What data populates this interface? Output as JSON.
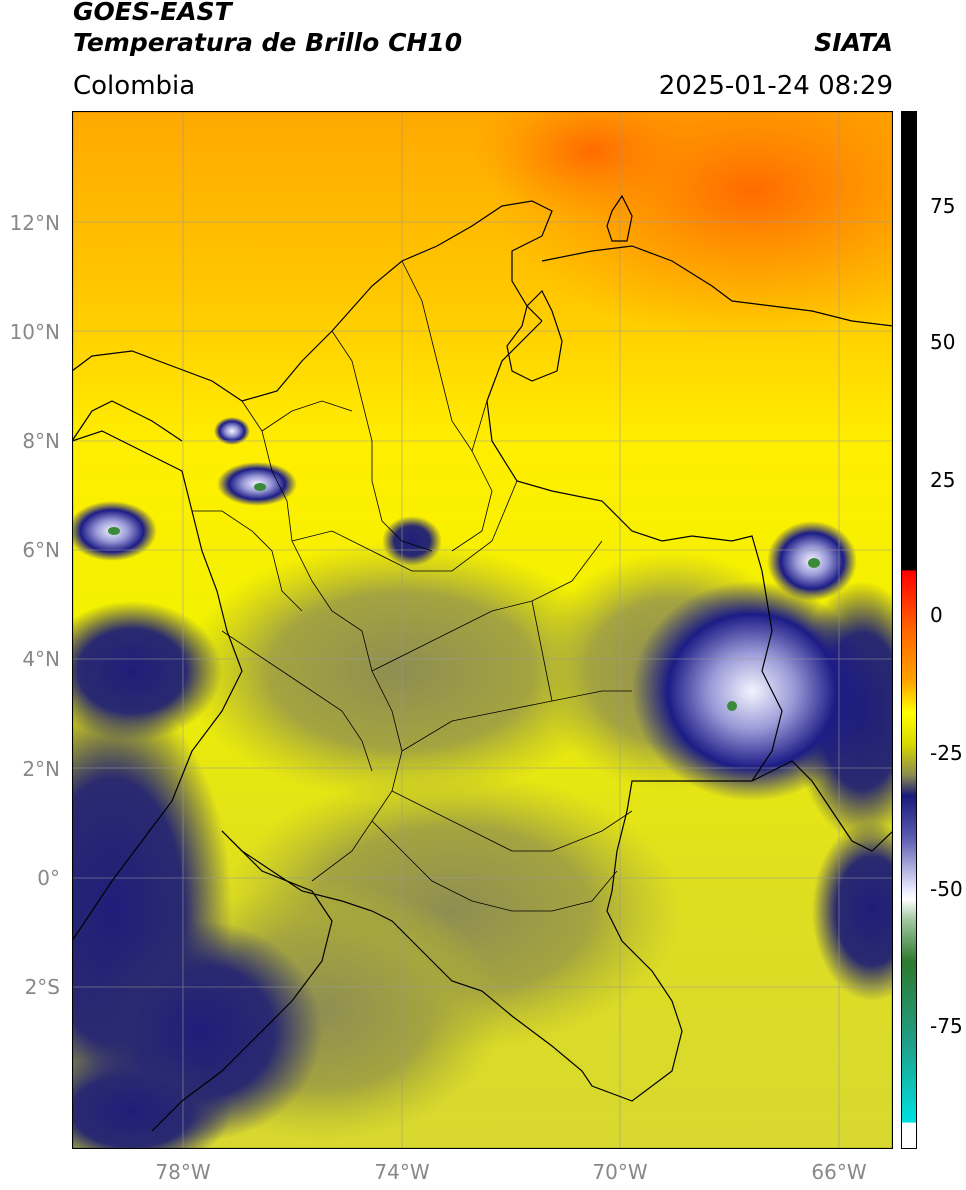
{
  "header": {
    "title_line1": "GOES-EAST",
    "title_line2": "Temperatura de Brillo CH10",
    "source": "SIATA",
    "region": "Colombia",
    "datetime": "2025-01-24 08:29"
  },
  "map": {
    "lat_labels": [
      "12°N",
      "10°N",
      "8°N",
      "6°N",
      "4°N",
      "2°N",
      "0°",
      "2°S"
    ],
    "lon_labels": [
      "78°W",
      "74°W",
      "70°W",
      "66°W"
    ],
    "colors": {
      "warm_orange": "#ff6f00",
      "orange": "#ffa200",
      "yellow": "#ffff00",
      "olive": "#a8a83a",
      "grey_olive": "#6e6e5a",
      "navy": "#1a1a80",
      "white": "#f0f0ff",
      "green": "#3a7a3a"
    }
  },
  "colorbar": {
    "tick_labels": [
      "75",
      "50",
      "25",
      "0",
      "-25",
      "-50",
      "-75"
    ]
  }
}
